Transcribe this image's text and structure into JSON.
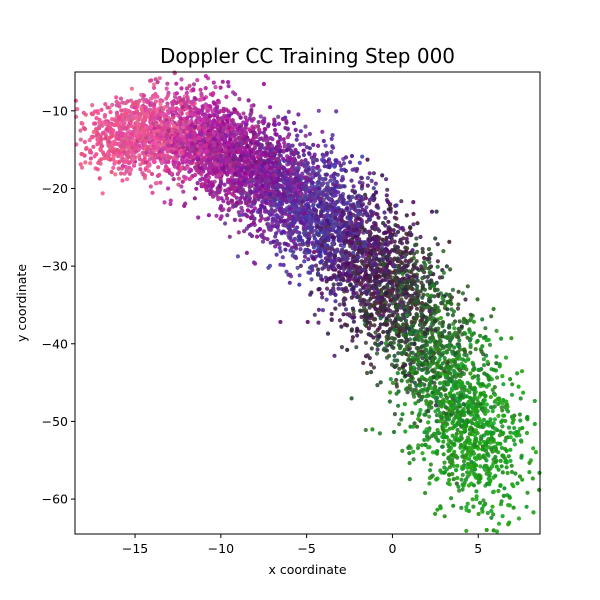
{
  "chart_data": {
    "type": "scatter",
    "title": "Doppler CC Training Step 000",
    "xlabel": "x coordinate",
    "ylabel": "y coordinate",
    "xlim": [
      -18.5,
      8.6
    ],
    "ylim": [
      -64.5,
      -5
    ],
    "xticks": [
      -15,
      -10,
      -5,
      0,
      5
    ],
    "yticks": [
      -10,
      -20,
      -30,
      -40,
      -50,
      -60
    ],
    "xtick_labels": [
      "−15",
      "−10",
      "−5",
      "0",
      "5"
    ],
    "ytick_labels": [
      "−10",
      "−20",
      "−30",
      "−40",
      "−50",
      "−60"
    ],
    "grid": false,
    "legend": "none",
    "point_count": 7000,
    "curve": {
      "description": "points follow a downward-bending arc; color shifts along arc from pink/red to magenta to blue-purple to dark purple to green",
      "centerline_x": [
        -16.5,
        -14,
        -12,
        -10,
        -8,
        -6,
        -4,
        -2,
        0,
        2,
        4,
        6
      ],
      "centerline_y": [
        -13.5,
        -12.5,
        -13,
        -15,
        -17.5,
        -20.5,
        -24,
        -28,
        -33,
        -40,
        -49,
        -56
      ],
      "colors": [
        "#e8508a",
        "#e85a9a",
        "#c0309a",
        "#a0209a",
        "#8a1a90",
        "#6a2a9a",
        "#4a3aa0",
        "#5a1a6a",
        "#3a2a3a",
        "#2a6a2a",
        "#209a20",
        "#18a018"
      ]
    }
  }
}
